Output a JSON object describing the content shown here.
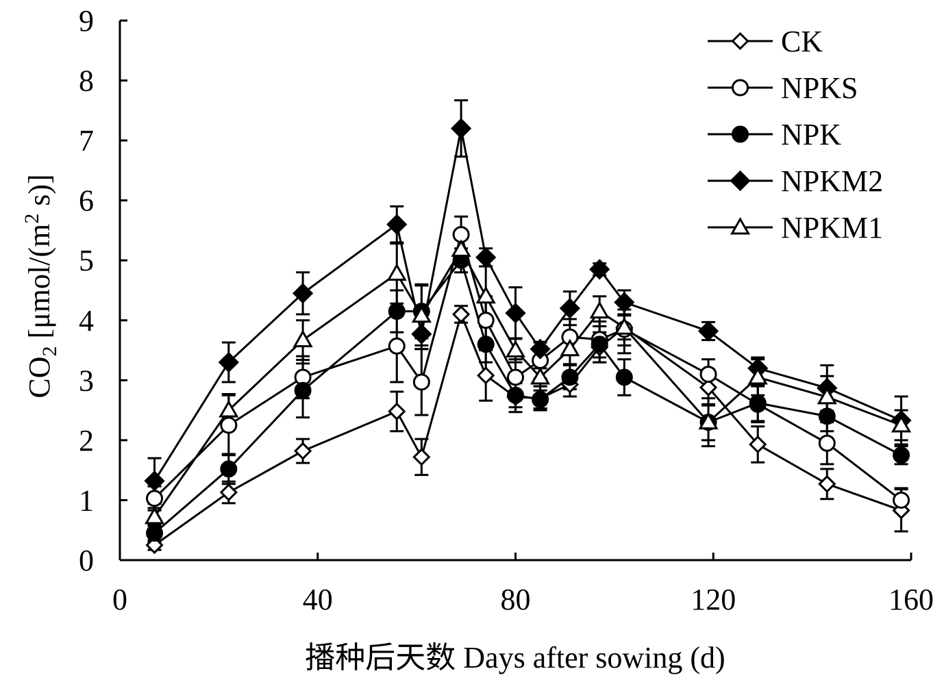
{
  "chart_data": {
    "type": "line",
    "xlabel": "播种后天数 Days after sowing (d)",
    "ylabel_main": "CO",
    "ylabel_sub": "2",
    "ylabel_mid": " [μmol/(m",
    "ylabel_sup": "2",
    "ylabel_end": " s)]",
    "xlim": [
      0,
      160
    ],
    "ylim": [
      0,
      9
    ],
    "xticks": [
      0,
      40,
      80,
      120,
      160
    ],
    "yticks": [
      0,
      1,
      2,
      3,
      4,
      5,
      6,
      7,
      8,
      9
    ],
    "grid": false,
    "legend_position": "top-right",
    "x": [
      7,
      22,
      37,
      56,
      61,
      69,
      74,
      80,
      85,
      91,
      97,
      102,
      119,
      129,
      143,
      158
    ],
    "series": [
      {
        "name": "CK",
        "marker": "diamond-open",
        "values": [
          0.25,
          1.13,
          1.82,
          2.48,
          1.72,
          4.1,
          3.08,
          2.72,
          2.7,
          2.93,
          3.55,
          3.88,
          2.88,
          1.93,
          1.27,
          0.83
        ],
        "errors": [
          0.08,
          0.18,
          0.2,
          0.33,
          0.3,
          0.14,
          0.42,
          0.25,
          0.2,
          0.2,
          0.25,
          0.2,
          0.3,
          0.3,
          0.25,
          0.35
        ]
      },
      {
        "name": "NPKS",
        "marker": "circle-open",
        "values": [
          1.03,
          2.25,
          3.05,
          3.57,
          2.97,
          5.43,
          4.0,
          3.05,
          3.33,
          3.72,
          3.68,
          3.85,
          3.1,
          2.6,
          1.95,
          1.0
        ],
        "errors": [
          0.2,
          0.5,
          0.35,
          0.6,
          0.55,
          0.3,
          0.4,
          0.3,
          0.3,
          0.3,
          0.3,
          0.4,
          0.25,
          0.3,
          0.35,
          0.2
        ]
      },
      {
        "name": "NPK",
        "marker": "circle-filled",
        "values": [
          0.45,
          1.52,
          2.83,
          4.15,
          4.15,
          5.0,
          3.6,
          2.75,
          2.68,
          3.05,
          3.6,
          3.05,
          2.3,
          2.62,
          2.4,
          1.75
        ],
        "errors": [
          0.15,
          0.25,
          0.45,
          0.35,
          0.45,
          0.2,
          0.3,
          0.2,
          0.15,
          0.2,
          0.3,
          0.3,
          0.4,
          0.3,
          0.25,
          0.15
        ]
      },
      {
        "name": "NPKM2",
        "marker": "diamond-filled",
        "values": [
          1.32,
          3.3,
          4.45,
          5.6,
          3.77,
          7.2,
          5.05,
          4.12,
          3.52,
          4.2,
          4.85,
          4.3,
          3.82,
          3.2,
          2.87,
          2.33
        ],
        "errors": [
          0.38,
          0.33,
          0.35,
          0.3,
          0.25,
          0.47,
          0.15,
          0.43,
          0.12,
          0.28,
          0.1,
          0.2,
          0.15,
          0.18,
          0.38,
          0.4
        ]
      },
      {
        "name": "NPKM1",
        "marker": "triangle-open",
        "values": [
          0.72,
          2.5,
          3.67,
          4.78,
          4.08,
          5.18,
          4.4,
          3.5,
          3.05,
          3.52,
          4.15,
          3.88,
          2.3,
          3.05,
          2.72,
          2.25
        ],
        "errors": [
          0.15,
          0.27,
          0.33,
          0.5,
          0.5,
          0.25,
          0.5,
          0.2,
          0.15,
          0.25,
          0.25,
          0.3,
          0.3,
          0.3,
          0.35,
          0.25
        ]
      }
    ]
  }
}
